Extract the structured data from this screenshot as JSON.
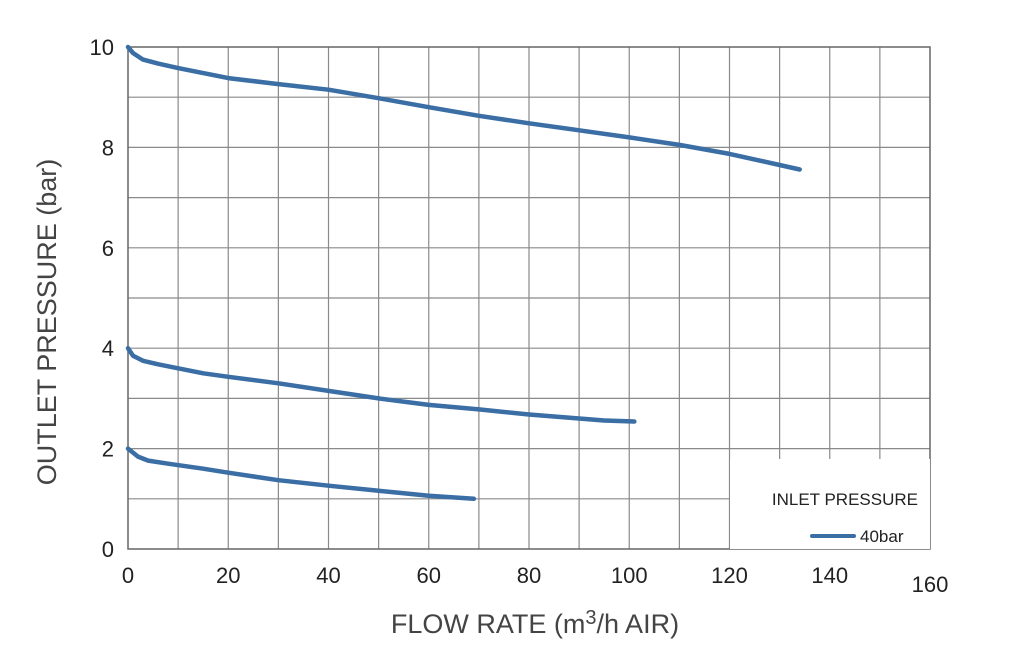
{
  "chart_data": {
    "type": "line",
    "xlabel": "FLOW RATE (m",
    "xlabel_sup": "3",
    "xlabel_tail": "/h AIR)",
    "ylabel": "OUTLET PRESSURE (bar)",
    "xlim": [
      0,
      160
    ],
    "ylim": [
      0,
      10
    ],
    "x_ticks": [
      "0",
      "20",
      "40",
      "60",
      "80",
      "100",
      "120",
      "140",
      "160"
    ],
    "y_ticks": [
      "0",
      "2",
      "4",
      "6",
      "8",
      "10"
    ],
    "grid": true,
    "grid_x_step": 10,
    "grid_y_step": 1,
    "line_color": "#3a6ea5",
    "legend": {
      "title": "INLET PRESSURE",
      "entries": [
        "40bar"
      ],
      "placement": "bottom-right"
    },
    "series": [
      {
        "points": [
          [
            0,
            10.0
          ],
          [
            1,
            9.88
          ],
          [
            3,
            9.75
          ],
          [
            6,
            9.67
          ],
          [
            10,
            9.58
          ],
          [
            15,
            9.48
          ],
          [
            20,
            9.38
          ],
          [
            30,
            9.26
          ],
          [
            40,
            9.15
          ],
          [
            50,
            8.98
          ],
          [
            60,
            8.8
          ],
          [
            70,
            8.63
          ],
          [
            80,
            8.48
          ],
          [
            90,
            8.34
          ],
          [
            100,
            8.2
          ],
          [
            110,
            8.05
          ],
          [
            120,
            7.87
          ],
          [
            130,
            7.65
          ],
          [
            134,
            7.56
          ]
        ]
      },
      {
        "points": [
          [
            0,
            4.0
          ],
          [
            1,
            3.85
          ],
          [
            3,
            3.75
          ],
          [
            6,
            3.68
          ],
          [
            10,
            3.6
          ],
          [
            15,
            3.5
          ],
          [
            20,
            3.43
          ],
          [
            30,
            3.3
          ],
          [
            40,
            3.15
          ],
          [
            50,
            3.0
          ],
          [
            60,
            2.87
          ],
          [
            70,
            2.78
          ],
          [
            80,
            2.68
          ],
          [
            90,
            2.6
          ],
          [
            95,
            2.56
          ],
          [
            101,
            2.54
          ]
        ]
      },
      {
        "points": [
          [
            0,
            2.0
          ],
          [
            2,
            1.84
          ],
          [
            4,
            1.76
          ],
          [
            8,
            1.7
          ],
          [
            15,
            1.6
          ],
          [
            20,
            1.52
          ],
          [
            30,
            1.37
          ],
          [
            40,
            1.26
          ],
          [
            50,
            1.16
          ],
          [
            60,
            1.06
          ],
          [
            69,
            1.0
          ]
        ]
      }
    ]
  }
}
